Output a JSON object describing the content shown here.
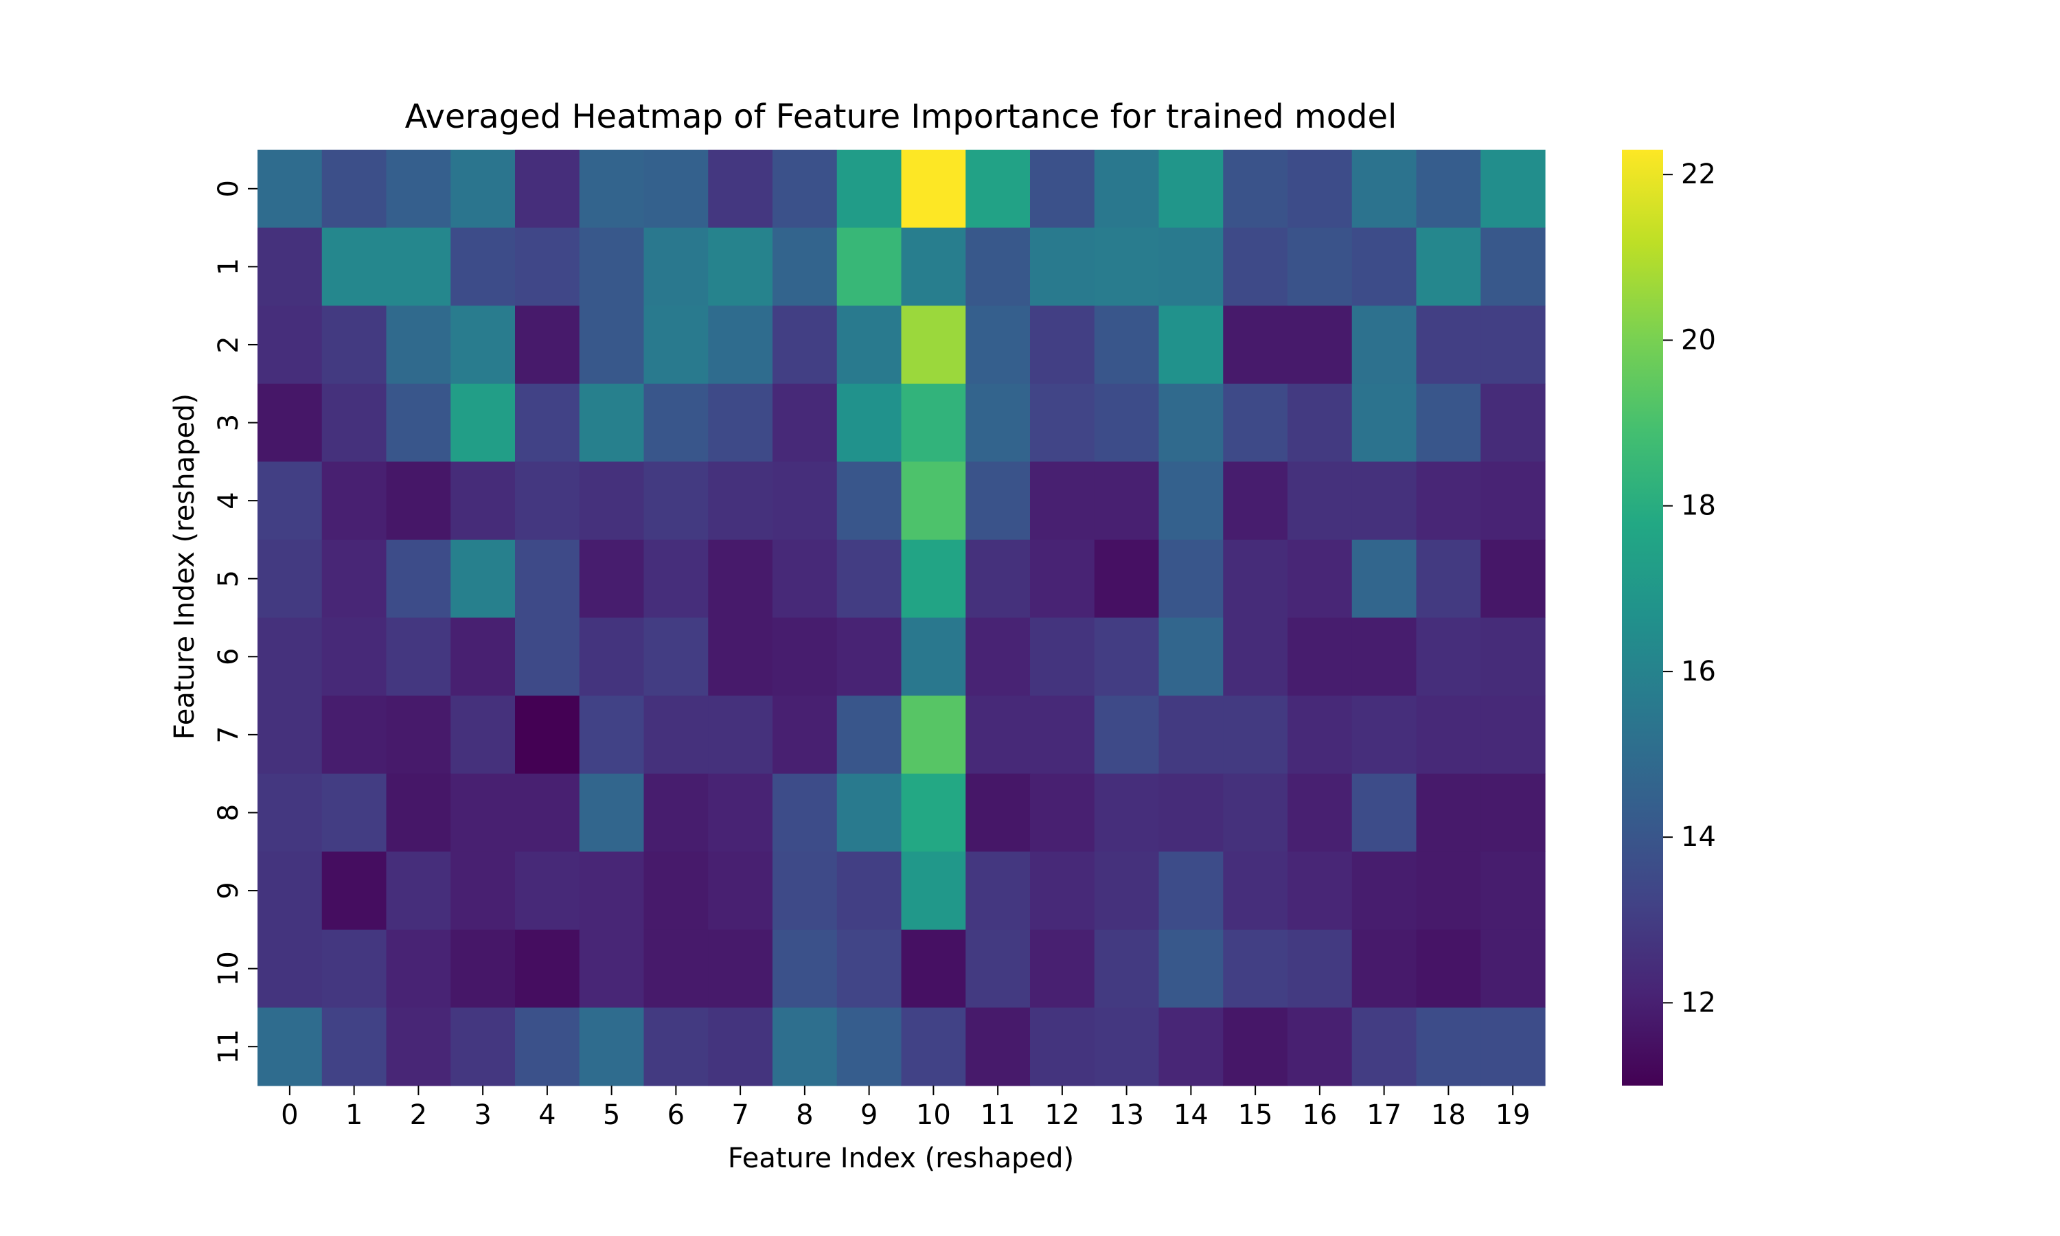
{
  "chart_data": {
    "type": "heatmap",
    "title": "Averaged Heatmap of Feature Importance for trained model",
    "xlabel": "Feature Index (reshaped)",
    "ylabel": "Feature Index (reshaped)",
    "x_categories": [
      "0",
      "1",
      "2",
      "3",
      "4",
      "5",
      "6",
      "7",
      "8",
      "9",
      "10",
      "11",
      "12",
      "13",
      "14",
      "15",
      "16",
      "17",
      "18",
      "19"
    ],
    "y_categories": [
      "0",
      "1",
      "2",
      "3",
      "4",
      "5",
      "6",
      "7",
      "8",
      "9",
      "10",
      "11"
    ],
    "values": [
      [
        15.0,
        13.7,
        14.4,
        15.4,
        12.5,
        14.6,
        14.5,
        12.8,
        13.8,
        17.2,
        22.3,
        17.5,
        13.8,
        15.5,
        16.9,
        13.9,
        13.6,
        15.3,
        14.3,
        16.5
      ],
      [
        12.6,
        16.2,
        16.2,
        13.6,
        13.4,
        14.1,
        15.5,
        16.0,
        14.6,
        18.5,
        15.8,
        14.1,
        15.6,
        15.7,
        15.6,
        13.5,
        13.9,
        13.6,
        16.2,
        14.1
      ],
      [
        12.5,
        12.9,
        14.9,
        15.7,
        11.8,
        14.1,
        15.6,
        15.0,
        13.1,
        15.6,
        20.6,
        14.4,
        13.1,
        14.0,
        16.7,
        11.8,
        11.8,
        15.2,
        13.1,
        13.1
      ],
      [
        11.7,
        12.6,
        14.0,
        17.3,
        13.2,
        15.9,
        14.0,
        13.5,
        12.3,
        16.7,
        18.3,
        14.6,
        13.3,
        13.6,
        14.9,
        13.5,
        12.9,
        15.3,
        14.0,
        12.4
      ],
      [
        13.1,
        12.0,
        11.7,
        12.4,
        12.8,
        12.6,
        12.9,
        12.6,
        12.5,
        14.0,
        19.1,
        13.9,
        12.0,
        12.0,
        14.5,
        11.9,
        12.6,
        12.6,
        12.2,
        12.1
      ],
      [
        12.9,
        12.2,
        13.6,
        15.9,
        13.5,
        11.9,
        12.5,
        11.8,
        12.3,
        13.0,
        17.6,
        12.6,
        12.1,
        11.5,
        14.0,
        12.4,
        12.2,
        14.7,
        12.9,
        11.7
      ],
      [
        12.6,
        12.3,
        12.8,
        12.0,
        13.5,
        12.7,
        13.0,
        11.8,
        11.9,
        12.1,
        15.5,
        12.1,
        12.7,
        13.0,
        14.7,
        12.4,
        11.9,
        11.9,
        12.5,
        12.4
      ],
      [
        12.6,
        11.9,
        11.8,
        12.6,
        11.0,
        13.2,
        12.6,
        12.6,
        12.0,
        14.0,
        19.3,
        12.3,
        12.3,
        13.5,
        12.9,
        12.9,
        12.3,
        12.5,
        12.3,
        12.3
      ],
      [
        12.8,
        13.0,
        11.7,
        12.0,
        12.0,
        14.7,
        11.9,
        12.1,
        13.6,
        15.6,
        17.8,
        11.7,
        12.0,
        12.5,
        12.4,
        12.6,
        12.0,
        13.6,
        11.8,
        11.8
      ],
      [
        12.7,
        11.4,
        12.5,
        12.0,
        12.3,
        12.2,
        11.8,
        12.0,
        13.5,
        13.1,
        17.0,
        12.8,
        12.3,
        12.6,
        13.6,
        12.5,
        12.2,
        11.9,
        11.8,
        11.9
      ],
      [
        12.7,
        12.8,
        12.1,
        11.7,
        11.4,
        12.2,
        11.8,
        11.8,
        13.8,
        13.3,
        11.5,
        12.9,
        12.0,
        12.9,
        14.1,
        13.1,
        12.9,
        11.8,
        11.6,
        11.9
      ],
      [
        15.0,
        13.2,
        12.2,
        12.8,
        13.8,
        15.0,
        12.9,
        12.7,
        15.1,
        14.3,
        13.2,
        11.8,
        12.7,
        12.8,
        12.2,
        11.7,
        12.0,
        13.0,
        13.6,
        13.6
      ]
    ],
    "vmin": 11.0,
    "vmax": 22.3,
    "colormap": "viridis",
    "colorbar_ticks": [
      12,
      14,
      16,
      18,
      20,
      22
    ],
    "colorbar_tick_labels": [
      "12",
      "14",
      "16",
      "18",
      "20",
      "22"
    ],
    "grid": false
  }
}
